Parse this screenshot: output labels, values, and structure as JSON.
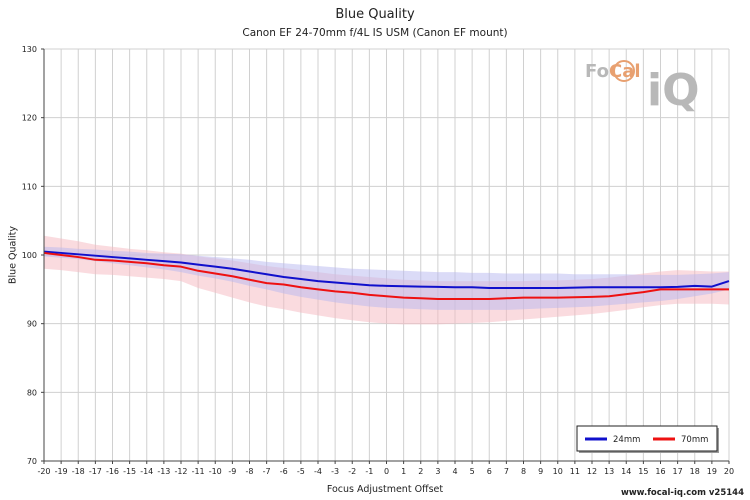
{
  "chart_data": {
    "type": "line",
    "title": "Blue Quality",
    "subtitle": "Canon EF 24-70mm f/4L IS USM (Canon EF mount)",
    "xlabel": "Focus Adjustment Offset",
    "ylabel": "Blue Quality",
    "xlim": [
      -20,
      20
    ],
    "ylim": [
      70,
      130
    ],
    "x": [
      -20,
      -19,
      -18,
      -17,
      -16,
      -15,
      -14,
      -13,
      -12,
      -11,
      -10,
      -9,
      -8,
      -7,
      -6,
      -5,
      -4,
      -3,
      -2,
      -1,
      0,
      1,
      2,
      3,
      4,
      5,
      6,
      7,
      8,
      9,
      10,
      11,
      12,
      13,
      14,
      15,
      16,
      17,
      18,
      19,
      20
    ],
    "x_ticks": [
      "-20",
      "-19",
      "-18",
      "-17",
      "-16",
      "-15",
      "-14",
      "-13",
      "-12",
      "-11",
      "-10",
      "-9",
      "-8",
      "-7",
      "-6",
      "-5",
      "-4",
      "-3",
      "-2",
      "-1",
      "0",
      "1",
      "2",
      "3",
      "4",
      "5",
      "6",
      "7",
      "8",
      "9",
      "10",
      "11",
      "12",
      "13",
      "14",
      "15",
      "16",
      "17",
      "18",
      "19",
      "20"
    ],
    "y_ticks": [
      "70",
      "80",
      "90",
      "100",
      "110",
      "120",
      "130"
    ],
    "grid": true,
    "legend_position": "bottom-right",
    "series": [
      {
        "name": "24mm",
        "color": "#1010cc",
        "band_color": "#b8b8f0",
        "values": [
          100.5,
          100.3,
          100.1,
          99.9,
          99.7,
          99.5,
          99.3,
          99.1,
          98.9,
          98.6,
          98.3,
          98.0,
          97.6,
          97.2,
          96.8,
          96.5,
          96.2,
          96.0,
          95.8,
          95.6,
          95.5,
          95.45,
          95.4,
          95.35,
          95.3,
          95.3,
          95.2,
          95.2,
          95.2,
          95.2,
          95.2,
          95.25,
          95.3,
          95.3,
          95.3,
          95.3,
          95.3,
          95.35,
          95.5,
          95.4,
          96.2
        ],
        "band": [
          [
            99.8,
            101.2
          ],
          [
            99.6,
            101.1
          ],
          [
            99.4,
            100.9
          ],
          [
            99.1,
            100.8
          ],
          [
            98.8,
            100.6
          ],
          [
            98.5,
            100.5
          ],
          [
            98.2,
            100.3
          ],
          [
            97.9,
            100.2
          ],
          [
            97.5,
            100.1
          ],
          [
            97.0,
            99.9
          ],
          [
            96.6,
            99.7
          ],
          [
            96.1,
            99.5
          ],
          [
            95.5,
            99.3
          ],
          [
            95.0,
            99.0
          ],
          [
            94.4,
            98.8
          ],
          [
            93.9,
            98.6
          ],
          [
            93.5,
            98.4
          ],
          [
            93.1,
            98.2
          ],
          [
            92.8,
            98.0
          ],
          [
            92.5,
            97.9
          ],
          [
            92.3,
            97.8
          ],
          [
            92.2,
            97.7
          ],
          [
            92.1,
            97.6
          ],
          [
            92.0,
            97.5
          ],
          [
            92.0,
            97.5
          ],
          [
            92.0,
            97.4
          ],
          [
            92.0,
            97.4
          ],
          [
            92.0,
            97.3
          ],
          [
            92.1,
            97.3
          ],
          [
            92.2,
            97.3
          ],
          [
            92.3,
            97.3
          ],
          [
            92.4,
            97.2
          ],
          [
            92.5,
            97.2
          ],
          [
            92.7,
            97.2
          ],
          [
            92.9,
            97.2
          ],
          [
            93.1,
            97.1
          ],
          [
            93.3,
            97.1
          ],
          [
            93.6,
            97.1
          ],
          [
            94.0,
            97.2
          ],
          [
            94.4,
            97.3
          ],
          [
            95.0,
            97.5
          ]
        ]
      },
      {
        "name": "70mm",
        "color": "#ee1111",
        "band_color": "#f6b8c0",
        "values": [
          100.3,
          100.0,
          99.7,
          99.3,
          99.2,
          99.0,
          98.8,
          98.5,
          98.3,
          97.7,
          97.3,
          96.9,
          96.4,
          95.9,
          95.7,
          95.3,
          95.0,
          94.7,
          94.5,
          94.2,
          94.0,
          93.8,
          93.7,
          93.6,
          93.6,
          93.6,
          93.6,
          93.7,
          93.8,
          93.8,
          93.8,
          93.85,
          93.9,
          94.0,
          94.3,
          94.6,
          95.0,
          95.0,
          95.0,
          95.0,
          95.0
        ],
        "band": [
          [
            98.0,
            102.8
          ],
          [
            97.8,
            102.4
          ],
          [
            97.5,
            102.0
          ],
          [
            97.2,
            101.5
          ],
          [
            97.1,
            101.2
          ],
          [
            96.9,
            100.9
          ],
          [
            96.7,
            100.7
          ],
          [
            96.5,
            100.4
          ],
          [
            96.2,
            100.2
          ],
          [
            95.2,
            99.8
          ],
          [
            94.5,
            99.5
          ],
          [
            93.8,
            99.2
          ],
          [
            93.1,
            98.8
          ],
          [
            92.5,
            98.4
          ],
          [
            92.1,
            98.1
          ],
          [
            91.6,
            97.8
          ],
          [
            91.2,
            97.5
          ],
          [
            90.8,
            97.2
          ],
          [
            90.5,
            97.0
          ],
          [
            90.2,
            96.8
          ],
          [
            90.0,
            96.6
          ],
          [
            89.9,
            96.4
          ],
          [
            89.9,
            96.3
          ],
          [
            89.9,
            96.2
          ],
          [
            90.0,
            96.2
          ],
          [
            90.1,
            96.2
          ],
          [
            90.2,
            96.2
          ],
          [
            90.4,
            96.2
          ],
          [
            90.6,
            96.2
          ],
          [
            90.8,
            96.3
          ],
          [
            91.0,
            96.3
          ],
          [
            91.2,
            96.4
          ],
          [
            91.4,
            96.5
          ],
          [
            91.7,
            96.7
          ],
          [
            92.0,
            97.0
          ],
          [
            92.4,
            97.3
          ],
          [
            92.7,
            97.6
          ],
          [
            92.9,
            97.8
          ],
          [
            92.9,
            97.7
          ],
          [
            92.9,
            97.6
          ],
          [
            92.8,
            97.6
          ]
        ]
      }
    ]
  },
  "branding": {
    "logo_text_1": "Fo",
    "logo_text_2": "Cal",
    "logo_text_3": "iQ",
    "version": "www.focal-iq.com  v25144"
  }
}
